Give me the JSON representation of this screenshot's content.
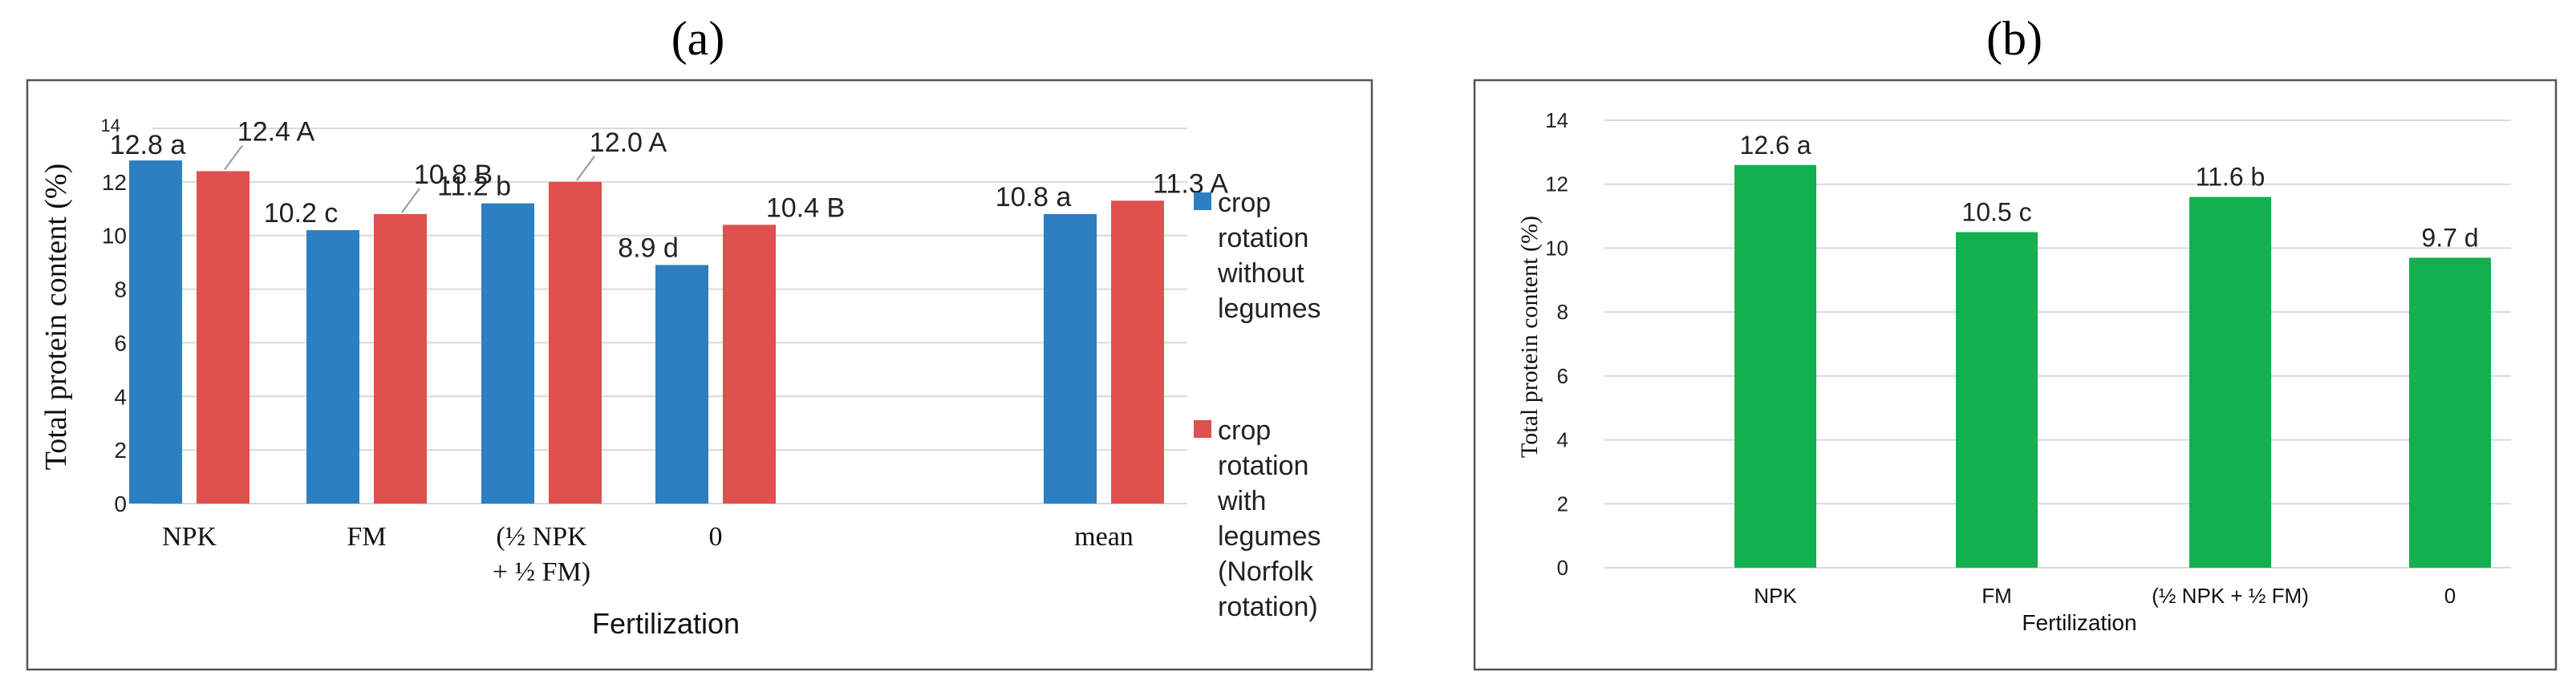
{
  "panels": [
    {
      "label": "(a)",
      "chart_data": {
        "type": "bar",
        "categories": [
          "NPK",
          "FM",
          "(½ NPK + ½ FM)",
          "0",
          "mean"
        ],
        "category_lines": [
          [
            "NPK"
          ],
          [
            "FM"
          ],
          [
            "(½ NPK",
            "+ ½ FM)"
          ],
          [
            "0"
          ],
          [
            "mean"
          ]
        ],
        "series": [
          {
            "name": "crop rotation without legumes",
            "legend_lines": [
              "crop",
              "rotation",
              "without",
              "legumes"
            ],
            "values": [
              12.8,
              10.2,
              11.2,
              8.9,
              10.8
            ],
            "labels": [
              "12.8 a",
              "10.2 c",
              "11.2 b",
              "8.9 d",
              "10.8 a"
            ],
            "color": "#2c7fc1"
          },
          {
            "name": "crop rotation with legumes (Norfolk rotation)",
            "legend_lines": [
              "crop",
              "rotation",
              "with",
              "legumes",
              "(Norfolk",
              "rotation)"
            ],
            "values": [
              12.4,
              10.8,
              12.0,
              10.4,
              11.3
            ],
            "labels": [
              "12.4 A",
              "10.8 B",
              "12.0 A",
              "10.4 B",
              "11.3 A"
            ],
            "color": "#e0504f"
          }
        ],
        "ylim": [
          0,
          14
        ],
        "yticks": [
          "0",
          "2",
          "4",
          "6",
          "8",
          "10",
          "12",
          "14"
        ],
        "xlabel": "Fertilization",
        "ylabel": "Total protein content (%)",
        "grid": true,
        "legend": "right"
      }
    },
    {
      "label": "(b)",
      "chart_data": {
        "type": "bar",
        "categories": [
          "NPK",
          "FM",
          "(½ NPK + ½ FM)",
          "0"
        ],
        "series": [
          {
            "name": "Total protein content",
            "values": [
              12.6,
              10.5,
              11.6,
              9.7
            ],
            "labels": [
              "12.6 a",
              "10.5 c",
              "11.6 b",
              "9.7 d"
            ],
            "color": "#12b04f"
          }
        ],
        "ylim": [
          0,
          14
        ],
        "yticks": [
          "0",
          "2",
          "4",
          "6",
          "8",
          "10",
          "12",
          "14"
        ],
        "xlabel": "Fertilization",
        "ylabel": "Total protein content (%)",
        "grid": true,
        "legend": "none"
      }
    }
  ]
}
